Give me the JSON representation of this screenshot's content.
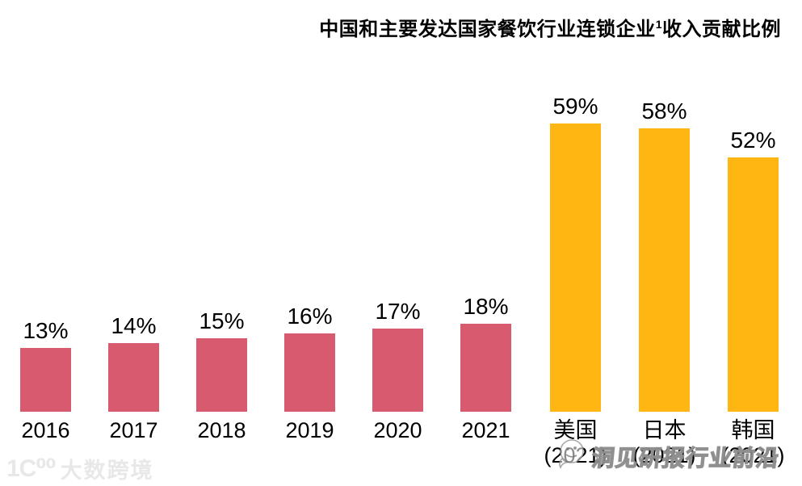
{
  "title": {
    "prefix": "中国和主要发达国家餐饮行业连锁企业",
    "superscript": "1",
    "suffix": "收入贡献比例"
  },
  "chart_data": {
    "type": "bar",
    "title": "中国和主要发达国家餐饮行业连锁企业¹收入贡献比例",
    "value_suffix": "%",
    "axes_visible": false,
    "grid": false,
    "legend": "none",
    "ylim": [
      0,
      62
    ],
    "groups": [
      {
        "color": "#D85A6F",
        "bars": [
          {
            "label": "2016",
            "value": 13
          },
          {
            "label": "2017",
            "value": 14
          },
          {
            "label": "2018",
            "value": 15
          },
          {
            "label": "2019",
            "value": 16
          },
          {
            "label": "2020",
            "value": 17
          },
          {
            "label": "2021",
            "value": 18
          }
        ]
      },
      {
        "color": "#FFB612",
        "bars": [
          {
            "label": "美国",
            "sublabel": "(2021)",
            "value": 59
          },
          {
            "label": "日本",
            "sublabel": "(2021)",
            "value": 58
          },
          {
            "label": "韩国",
            "sublabel": "(2021)",
            "value": 52
          }
        ]
      }
    ]
  },
  "watermarks": {
    "bottom_left": {
      "logo_glyph": "1C⁰⁰",
      "text": "大数跨境"
    },
    "bottom_right": {
      "text": "洞见研报行业前沿"
    }
  }
}
